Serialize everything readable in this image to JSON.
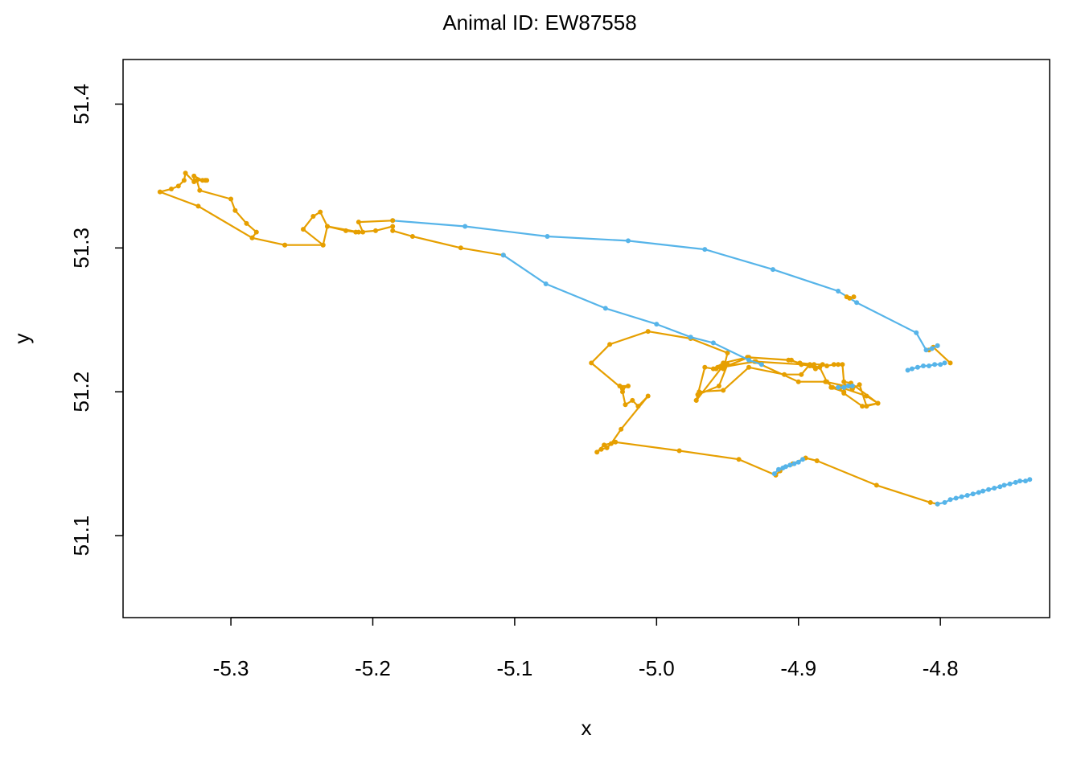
{
  "chart_data": {
    "type": "line",
    "title": "Animal ID: EW87558",
    "xlabel": "x",
    "ylabel": "y",
    "xlim": [
      -5.376,
      -4.723
    ],
    "ylim": [
      51.043,
      51.431
    ],
    "xticks": [
      -5.3,
      -5.2,
      -5.1,
      -5.0,
      -4.9,
      -4.8
    ],
    "xtick_labels": [
      "-5.3",
      "-5.2",
      "-5.1",
      "-5.0",
      "-4.9",
      "-4.8"
    ],
    "yticks": [
      51.1,
      51.2,
      51.3,
      51.4
    ],
    "ytick_labels": [
      "51.1",
      "51.2",
      "51.3",
      "51.4"
    ],
    "grid": false,
    "legend": null,
    "colors": {
      "orange": "#E69F00",
      "blue": "#56B4E9"
    },
    "series": [
      {
        "color": "orange",
        "points": [
          [
            -4.802,
            51.122
          ],
          [
            -4.807,
            51.123
          ],
          [
            -4.845,
            51.135
          ],
          [
            -4.887,
            51.152
          ],
          [
            -4.895,
            51.154
          ],
          [
            -4.904,
            51.15
          ],
          [
            -4.913,
            51.145
          ],
          [
            -4.916,
            51.142
          ],
          [
            -4.942,
            51.153
          ],
          [
            -4.984,
            51.159
          ],
          [
            -5.029,
            51.165
          ],
          [
            -5.037,
            51.163
          ],
          [
            -5.042,
            51.158
          ],
          [
            -5.039,
            51.16
          ],
          [
            -5.035,
            51.161
          ],
          [
            -5.032,
            51.164
          ],
          [
            -5.025,
            51.174
          ],
          [
            -5.006,
            51.197
          ],
          [
            -5.013,
            51.19
          ],
          [
            -5.017,
            51.194
          ],
          [
            -5.022,
            51.191
          ],
          [
            -5.024,
            51.2
          ],
          [
            -5.026,
            51.204
          ],
          [
            -5.02,
            51.204
          ],
          [
            -5.024,
            51.202
          ],
          [
            -5.046,
            51.22
          ],
          [
            -5.033,
            51.233
          ],
          [
            -5.006,
            51.242
          ],
          [
            -4.976,
            51.237
          ],
          [
            -4.95,
            51.227
          ],
          [
            -4.952,
            51.219
          ],
          [
            -4.952,
            51.218
          ],
          [
            -4.955,
            51.217
          ],
          [
            -4.958,
            51.216
          ],
          [
            -4.953,
            51.217
          ],
          [
            -4.935,
            51.224
          ],
          [
            -4.905,
            51.222
          ],
          [
            -4.898,
            51.219
          ],
          [
            -4.892,
            51.218
          ],
          [
            -4.888,
            51.216
          ],
          [
            -4.892,
            51.219
          ],
          [
            -4.898,
            51.212
          ],
          [
            -4.91,
            51.212
          ],
          [
            -4.935,
            51.217
          ],
          [
            -4.953,
            51.201
          ],
          [
            -4.97,
            51.2
          ],
          [
            -4.972,
            51.194
          ],
          [
            -4.954,
            51.217
          ],
          [
            -4.931,
            51.221
          ],
          [
            -4.9,
            51.207
          ],
          [
            -4.881,
            51.207
          ],
          [
            -4.867,
            51.204
          ],
          [
            -4.862,
            51.202
          ],
          [
            -4.857,
            51.205
          ],
          [
            -4.852,
            51.19
          ],
          [
            -4.844,
            51.192
          ],
          [
            -4.863,
            51.206
          ],
          [
            -4.868,
            51.207
          ],
          [
            -4.869,
            51.219
          ],
          [
            -4.872,
            51.219
          ],
          [
            -4.875,
            51.219
          ],
          [
            -4.88,
            51.218
          ],
          [
            -4.883,
            51.219
          ],
          [
            -4.889,
            51.219
          ],
          [
            -4.899,
            51.22
          ],
          [
            -4.907,
            51.222
          ],
          [
            -4.936,
            51.224
          ],
          [
            -4.953,
            51.22
          ],
          [
            -4.96,
            51.216
          ],
          [
            -4.966,
            51.217
          ],
          [
            -4.972,
            51.194
          ],
          [
            -4.971,
            51.198
          ],
          [
            -4.956,
            51.204
          ],
          [
            -4.95,
            51.219
          ],
          [
            -4.953,
            51.216
          ],
          [
            -4.957,
            51.217
          ],
          [
            -4.93,
            51.221
          ],
          [
            -4.898,
            51.219
          ],
          [
            -4.89,
            51.218
          ],
          [
            -4.885,
            51.217
          ],
          [
            -4.88,
            51.207
          ],
          [
            -4.876,
            51.203
          ],
          [
            -4.872,
            51.203
          ],
          [
            -4.868,
            51.199
          ],
          [
            -4.855,
            51.19
          ],
          [
            -4.844,
            51.192
          ],
          [
            -4.852,
            51.197
          ],
          [
            -4.87,
            51.203
          ],
          [
            -4.877,
            51.203
          ],
          [
            -4.868,
            51.2
          ]
        ]
      },
      {
        "color": "blue",
        "points": [
          [
            -4.917,
            51.143
          ],
          [
            -4.914,
            51.146
          ],
          [
            -4.911,
            51.147
          ],
          [
            -4.909,
            51.148
          ],
          [
            -4.906,
            51.149
          ],
          [
            -4.903,
            51.15
          ],
          [
            -4.9,
            51.151
          ],
          [
            -4.897,
            51.153
          ]
        ]
      },
      {
        "color": "blue",
        "points": [
          [
            -4.802,
            51.122
          ],
          [
            -4.797,
            51.123
          ],
          [
            -4.793,
            51.125
          ],
          [
            -4.789,
            51.126
          ],
          [
            -4.785,
            51.127
          ],
          [
            -4.781,
            51.128
          ],
          [
            -4.777,
            51.129
          ],
          [
            -4.773,
            51.13
          ],
          [
            -4.77,
            51.131
          ],
          [
            -4.766,
            51.132
          ],
          [
            -4.762,
            51.133
          ],
          [
            -4.758,
            51.134
          ],
          [
            -4.755,
            51.135
          ],
          [
            -4.751,
            51.136
          ],
          [
            -4.747,
            51.137
          ],
          [
            -4.744,
            51.138
          ],
          [
            -4.74,
            51.138
          ],
          [
            -4.737,
            51.139
          ]
        ]
      },
      {
        "color": "orange",
        "points": [
          [
            -4.802,
            51.232
          ],
          [
            -4.808,
            51.229
          ],
          [
            -4.805,
            51.231
          ],
          [
            -4.793,
            51.22
          ]
        ]
      },
      {
        "color": "blue",
        "points": [
          [
            -4.802,
            51.232
          ],
          [
            -4.806,
            51.23
          ],
          [
            -4.81,
            51.229
          ],
          [
            -4.817,
            51.241
          ],
          [
            -4.859,
            51.262
          ],
          [
            -4.872,
            51.27
          ],
          [
            -4.918,
            51.285
          ],
          [
            -4.966,
            51.299
          ],
          [
            -5.02,
            51.305
          ],
          [
            -5.077,
            51.308
          ],
          [
            -5.135,
            51.315
          ],
          [
            -5.186,
            51.319
          ]
        ]
      },
      {
        "color": "orange",
        "points": [
          [
            -5.186,
            51.319
          ],
          [
            -5.21,
            51.318
          ],
          [
            -5.207,
            51.311
          ],
          [
            -5.212,
            51.311
          ],
          [
            -5.219,
            51.312
          ],
          [
            -5.232,
            51.315
          ],
          [
            -5.237,
            51.325
          ],
          [
            -5.242,
            51.322
          ],
          [
            -5.249,
            51.313
          ],
          [
            -5.235,
            51.302
          ],
          [
            -5.262,
            51.302
          ],
          [
            -5.285,
            51.307
          ],
          [
            -5.282,
            51.311
          ],
          [
            -5.289,
            51.317
          ],
          [
            -5.297,
            51.326
          ],
          [
            -5.3,
            51.334
          ],
          [
            -5.322,
            51.34
          ],
          [
            -5.324,
            51.347
          ],
          [
            -5.317,
            51.347
          ],
          [
            -5.318,
            51.347
          ],
          [
            -5.32,
            51.347
          ],
          [
            -5.326,
            51.35
          ],
          [
            -5.326,
            51.346
          ],
          [
            -5.332,
            51.352
          ],
          [
            -5.333,
            51.347
          ],
          [
            -5.337,
            51.343
          ],
          [
            -5.342,
            51.341
          ],
          [
            -5.35,
            51.339
          ],
          [
            -5.323,
            51.329
          ],
          [
            -5.285,
            51.307
          ],
          [
            -5.262,
            51.302
          ],
          [
            -5.235,
            51.302
          ],
          [
            -5.232,
            51.315
          ],
          [
            -5.21,
            51.311
          ],
          [
            -5.198,
            51.312
          ],
          [
            -5.186,
            51.315
          ],
          [
            -5.186,
            51.312
          ],
          [
            -5.172,
            51.308
          ],
          [
            -5.138,
            51.3
          ],
          [
            -5.108,
            51.295
          ]
        ]
      },
      {
        "color": "blue",
        "points": [
          [
            -5.108,
            51.295
          ],
          [
            -5.078,
            51.275
          ],
          [
            -5.036,
            51.258
          ],
          [
            -5.0,
            51.247
          ],
          [
            -4.976,
            51.238
          ],
          [
            -4.96,
            51.234
          ],
          [
            -4.935,
            51.222
          ],
          [
            -4.926,
            51.219
          ]
        ]
      },
      {
        "color": "orange",
        "points": [
          [
            -4.866,
            51.266
          ],
          [
            -4.864,
            51.265
          ],
          [
            -4.861,
            51.266
          ]
        ]
      },
      {
        "color": "blue",
        "points": [
          [
            -4.823,
            51.215
          ],
          [
            -4.82,
            51.216
          ],
          [
            -4.816,
            51.217
          ],
          [
            -4.812,
            51.218
          ],
          [
            -4.808,
            51.218
          ],
          [
            -4.804,
            51.219
          ],
          [
            -4.8,
            51.219
          ],
          [
            -4.797,
            51.22
          ]
        ]
      },
      {
        "color": "blue",
        "points": [
          [
            -4.872,
            51.203
          ],
          [
            -4.868,
            51.203
          ],
          [
            -4.865,
            51.204
          ],
          [
            -4.862,
            51.204
          ]
        ]
      }
    ]
  }
}
